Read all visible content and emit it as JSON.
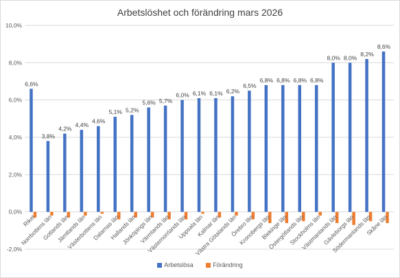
{
  "chart_data": {
    "type": "bar",
    "title": "Arbetslöshet och förändring mars 2026",
    "xlabel": "",
    "ylabel": "",
    "ylim": [
      -2,
      10
    ],
    "yticks": [
      "-2,0%",
      "0,0%",
      "2,0%",
      "4,0%",
      "6,0%",
      "8,0%",
      "10,0%"
    ],
    "ytick_values": [
      -2,
      0,
      2,
      4,
      6,
      8,
      10
    ],
    "grid": true,
    "legend": "bottom",
    "categories": [
      "Riket",
      "Norrbottens län",
      "Gotlands län",
      "Jämtlands län",
      "Västerbottens län",
      "Dalarnas län",
      "Hallands län",
      "Jönköpings län",
      "Värmlands län",
      "Västernorrlands län",
      "Uppsala län",
      "Kalmar län",
      "Västra Götalands län",
      "Örebro län",
      "Kronobergs län",
      "Blekinge län",
      "Östergötlands län",
      "Stockholms län",
      "Västmanlands län",
      "Gävleborgs län",
      "Södermanlands län",
      "Skåne län"
    ],
    "series": [
      {
        "name": "Arbetslösa",
        "color": "#4472c4",
        "values": [
          6.6,
          3.8,
          4.2,
          4.4,
          4.6,
          5.1,
          5.2,
          5.6,
          5.7,
          6.0,
          6.1,
          6.1,
          6.2,
          6.5,
          6.8,
          6.8,
          6.8,
          6.8,
          8.0,
          8.0,
          8.2,
          8.6
        ],
        "labels": [
          "6,6%",
          "3,8%",
          "4,2%",
          "4,4%",
          "4,6%",
          "5,1%",
          "5,2%",
          "5,6%",
          "5,7%",
          "6,0%",
          "6,1%",
          "6,1%",
          "6,2%",
          "6,5%",
          "6,8%",
          "6,8%",
          "6,8%",
          "6,8%",
          "8,0%",
          "8,0%",
          "8,2%",
          "8,6%"
        ]
      },
      {
        "name": "Förändring",
        "color": "#ed7d31",
        "values": [
          -0.3,
          -0.2,
          -0.3,
          -0.2,
          -0.1,
          -0.4,
          -0.3,
          -0.3,
          -0.4,
          -0.4,
          -0.1,
          -0.3,
          -0.2,
          -0.4,
          -0.6,
          -0.6,
          -0.5,
          -0.2,
          -0.6,
          -0.7,
          -0.5,
          -0.6
        ]
      }
    ]
  }
}
